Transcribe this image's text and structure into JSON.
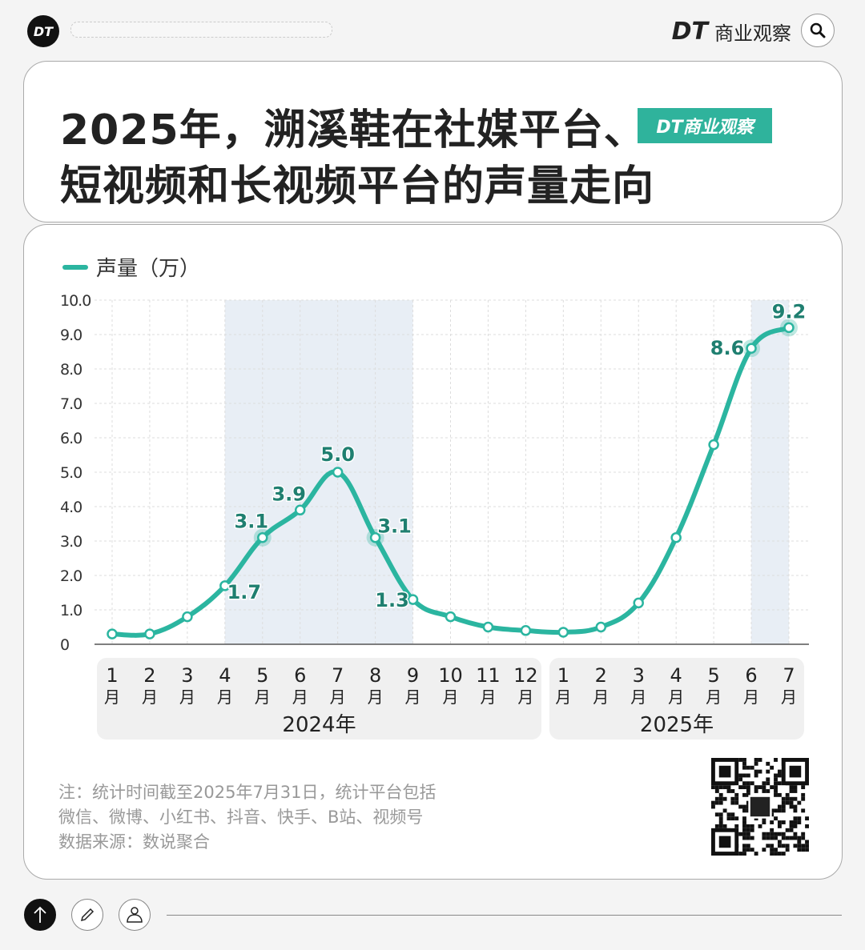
{
  "header": {
    "logo_text": "DT",
    "brand_mark": "DT",
    "brand_name": "商业观察",
    "search_icon": "search-icon"
  },
  "title": {
    "line1": "2025年，溯溪鞋在社媒平台、",
    "line2": "短视频和长视频平台的声量走向",
    "badge": "DT商业观察"
  },
  "colors": {
    "accent": "#2bb5a0",
    "highlight_band": "#e8eef5",
    "label": "#1f7f70"
  },
  "chart_data": {
    "type": "line",
    "title": "2025年，溯溪鞋在社媒平台、短视频和长视频平台的声量走向",
    "series": [
      {
        "name": "声量（万）",
        "values": [
          0.3,
          0.3,
          0.8,
          1.7,
          3.1,
          3.9,
          5.0,
          3.1,
          1.3,
          0.8,
          0.5,
          0.4,
          0.35,
          0.5,
          1.2,
          3.1,
          5.8,
          8.6,
          9.2
        ]
      }
    ],
    "categories": [
      {
        "month": "1",
        "unit": "月",
        "year": "2024年"
      },
      {
        "month": "2",
        "unit": "月",
        "year": "2024年"
      },
      {
        "month": "3",
        "unit": "月",
        "year": "2024年"
      },
      {
        "month": "4",
        "unit": "月",
        "year": "2024年"
      },
      {
        "month": "5",
        "unit": "月",
        "year": "2024年"
      },
      {
        "month": "6",
        "unit": "月",
        "year": "2024年"
      },
      {
        "month": "7",
        "unit": "月",
        "year": "2024年"
      },
      {
        "month": "8",
        "unit": "月",
        "year": "2024年"
      },
      {
        "month": "9",
        "unit": "月",
        "year": "2024年"
      },
      {
        "month": "10",
        "unit": "月",
        "year": "2024年"
      },
      {
        "month": "11",
        "unit": "月",
        "year": "2024年"
      },
      {
        "month": "12",
        "unit": "月",
        "year": "2024年"
      },
      {
        "month": "1",
        "unit": "月",
        "year": "2025年"
      },
      {
        "month": "2",
        "unit": "月",
        "year": "2025年"
      },
      {
        "month": "3",
        "unit": "月",
        "year": "2025年"
      },
      {
        "month": "4",
        "unit": "月",
        "year": "2025年"
      },
      {
        "month": "5",
        "unit": "月",
        "year": "2025年"
      },
      {
        "month": "6",
        "unit": "月",
        "year": "2025年"
      },
      {
        "month": "7",
        "unit": "月",
        "year": "2025年"
      }
    ],
    "year_groups": [
      "2024年",
      "2025年"
    ],
    "data_labels": [
      {
        "index": 3,
        "text": "1.7"
      },
      {
        "index": 4,
        "text": "3.1"
      },
      {
        "index": 5,
        "text": "3.9"
      },
      {
        "index": 6,
        "text": "5.0"
      },
      {
        "index": 7,
        "text": "3.1"
      },
      {
        "index": 8,
        "text": "1.3"
      },
      {
        "index": 17,
        "text": "8.6"
      },
      {
        "index": 18,
        "text": "9.2"
      }
    ],
    "highlight_ranges": [
      [
        "2024-04",
        "2024-09"
      ],
      [
        "2025-06",
        "2025-07"
      ]
    ],
    "yticks": [
      "0",
      "1.0",
      "2.0",
      "3.0",
      "4.0",
      "5.0",
      "6.0",
      "7.0",
      "8.0",
      "9.0",
      "10.0"
    ],
    "ylim": [
      0,
      10
    ],
    "grid": true,
    "legend": "top-left"
  },
  "notes": {
    "line1": "注：统计时间截至2025年7月31日，统计平台包括",
    "line2": "微信、微博、小红书、抖音、快手、B站、视频号",
    "source": "数据来源：数说聚合"
  },
  "footer": {
    "icons": [
      "arrow-up-icon",
      "pencil-icon",
      "user-icon"
    ]
  }
}
